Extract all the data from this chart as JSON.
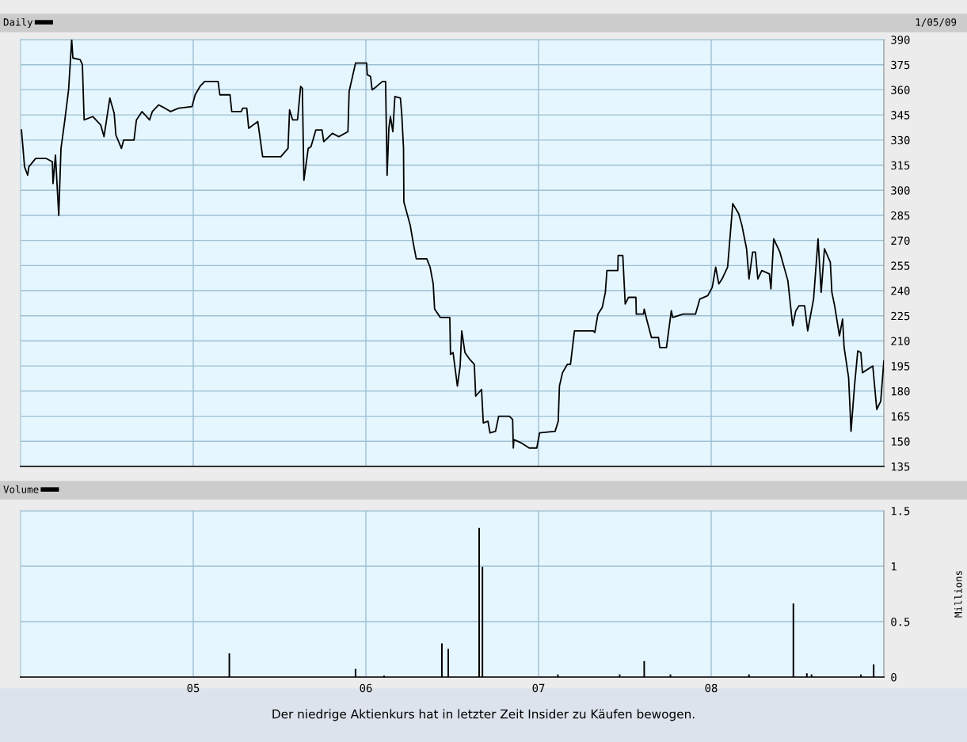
{
  "chart_data": [
    {
      "type": "line",
      "legend": "top left",
      "tick_labels": "y",
      "grid": true,
      "marker": "none",
      "line_style": "solid",
      "xlim": [
        2004.0,
        2009.0
      ],
      "xticks": [
        2005,
        2006,
        2007,
        2008
      ],
      "ylim": [
        135,
        390
      ],
      "yticks": [
        135,
        150,
        165,
        180,
        195,
        210,
        225,
        240,
        255,
        270,
        285,
        300,
        315,
        330,
        345,
        360,
        375,
        390
      ],
      "annotations": [
        "1/05/09"
      ],
      "series": [
        {
          "name": "Daily",
          "color": "#000000",
          "x": [
            2004.005,
            2004.023,
            2004.041,
            2004.048,
            2004.087,
            2004.147,
            2004.184,
            2004.188,
            2004.202,
            2004.221,
            2004.234,
            2004.255,
            2004.278,
            2004.296,
            2004.303,
            2004.345,
            2004.358,
            2004.368,
            2004.418,
            2004.464,
            2004.483,
            2004.517,
            2004.542,
            2004.552,
            2004.584,
            2004.597,
            2004.657,
            2004.671,
            2004.703,
            2004.747,
            2004.763,
            2004.8,
            2004.836,
            2004.869,
            2004.915,
            2004.993,
            2005.011,
            2005.039,
            2005.066,
            2005.144,
            2005.154,
            2005.213,
            2005.223,
            2005.278,
            2005.287,
            2005.31,
            2005.321,
            2005.374,
            2005.402,
            2005.507,
            2005.549,
            2005.558,
            2005.576,
            2005.604,
            2005.622,
            2005.632,
            2005.641,
            2005.666,
            2005.682,
            2005.71,
            2005.746,
            2005.756,
            2005.806,
            2005.843,
            2005.896,
            2005.903,
            2005.94,
            2006.004,
            2006.008,
            2006.027,
            2006.036,
            2006.062,
            2006.096,
            2006.114,
            2006.123,
            2006.133,
            2006.142,
            2006.156,
            2006.168,
            2006.2,
            2006.208,
            2006.218,
            2006.22,
            2006.257,
            2006.275,
            2006.292,
            2006.353,
            2006.372,
            2006.39,
            2006.398,
            2006.431,
            2006.486,
            2006.49,
            2006.505,
            2006.53,
            2006.546,
            2006.555,
            2006.574,
            2006.601,
            2006.628,
            2006.636,
            2006.67,
            2006.68,
            2006.707,
            2006.719,
            2006.751,
            2006.769,
            2006.831,
            2006.85,
            2006.854,
            2006.857,
            2006.901,
            2006.946,
            2006.99,
            2007.006,
            2007.096,
            2007.114,
            2007.121,
            2007.139,
            2007.167,
            2007.185,
            2007.208,
            2007.317,
            2007.326,
            2007.344,
            2007.369,
            2007.387,
            2007.396,
            2007.459,
            2007.461,
            2007.488,
            2007.502,
            2007.521,
            2007.564,
            2007.566,
            2007.608,
            2007.612,
            2007.626,
            2007.654,
            2007.695,
            2007.702,
            2007.741,
            2007.769,
            2007.777,
            2007.838,
            2007.909,
            2007.934,
            2007.98,
            2008.006,
            2008.026,
            2008.044,
            2008.063,
            2008.095,
            2008.125,
            2008.159,
            2008.178,
            2008.205,
            2008.219,
            2008.24,
            2008.256,
            2008.27,
            2008.293,
            2008.337,
            2008.346,
            2008.362,
            2008.398,
            2008.444,
            2008.472,
            2008.49,
            2008.509,
            2008.541,
            2008.559,
            2008.593,
            2008.619,
            2008.637,
            2008.656,
            2008.69,
            2008.699,
            2008.715,
            2008.743,
            2008.761,
            2008.77,
            2008.796,
            2008.81,
            2008.83,
            2008.849,
            2008.867,
            2008.876,
            2008.936,
            2008.959,
            2008.982,
            2009.0
          ],
          "values": [
            336,
            314,
            309,
            314,
            319,
            319,
            317,
            304,
            321,
            285,
            325,
            341,
            360,
            390,
            379,
            378,
            375,
            342,
            344,
            339,
            332,
            355,
            346,
            333,
            325,
            330,
            330,
            342,
            347,
            342,
            347,
            351,
            349,
            347,
            349,
            350,
            357,
            362,
            365,
            365,
            357,
            357,
            347,
            347,
            349,
            349,
            337,
            341,
            320,
            320,
            325,
            348,
            342,
            342,
            362,
            361,
            306,
            325,
            326,
            336,
            336,
            329,
            334,
            332,
            335,
            359,
            376,
            376,
            369,
            368,
            360,
            362,
            365,
            365,
            309,
            337,
            344,
            335,
            356,
            355,
            345,
            325,
            293,
            279,
            268,
            259,
            259,
            254,
            244,
            229,
            224,
            224,
            202,
            203,
            183,
            195,
            216,
            203,
            199,
            196,
            177,
            181,
            161,
            162,
            155,
            156,
            165,
            165,
            163,
            146,
            151,
            149,
            146,
            146,
            155,
            156,
            162,
            183,
            191,
            196,
            196,
            216,
            216,
            215,
            226,
            230,
            239,
            252,
            252,
            261,
            261,
            232,
            236,
            236,
            226,
            226,
            229,
            223,
            212,
            212,
            206,
            206,
            228,
            224,
            226,
            226,
            235,
            237,
            242,
            254,
            244,
            247,
            254,
            292,
            286,
            279,
            265,
            247,
            263,
            263,
            247,
            252,
            250,
            241,
            271,
            263,
            246,
            219,
            228,
            231,
            231,
            216,
            235,
            271,
            239,
            265,
            257,
            239,
            231,
            213,
            223,
            206,
            188,
            156,
            183,
            204,
            203,
            191,
            195,
            169,
            174,
            198
          ]
        }
      ]
    },
    {
      "type": "bar",
      "legend": "top left",
      "grid": true,
      "ylabel": "Millions",
      "xlim": [
        2004.0,
        2009.0
      ],
      "xticks": [
        {
          "value": 2005,
          "label": "05"
        },
        {
          "value": 2006,
          "label": "06"
        },
        {
          "value": 2007,
          "label": "07"
        },
        {
          "value": 2008,
          "label": "08"
        }
      ],
      "ylim": [
        0,
        1.5
      ],
      "yticks": [
        0,
        0.5,
        1,
        1.5
      ],
      "annotations": [
        "Der niedrige Aktienkurs hat in letzter Zeit Insider zu Käufen bewogen."
      ],
      "series": [
        {
          "name": "Volume",
          "color": "#000000",
          "x": [
            2005.209,
            2005.94,
            2006.105,
            2006.44,
            2006.477,
            2006.656,
            2006.675,
            2007.112,
            2007.47,
            2007.612,
            2007.764,
            2008.219,
            2008.476,
            2008.554,
            2008.581,
            2008.867,
            2008.941
          ],
          "values": [
            0.21,
            0.07,
            0.01,
            0.3,
            0.25,
            1.34,
            0.99,
            0.02,
            0.02,
            0.14,
            0.02,
            0.02,
            0.66,
            0.03,
            0.02,
            0.02,
            0.11
          ]
        }
      ]
    }
  ]
}
